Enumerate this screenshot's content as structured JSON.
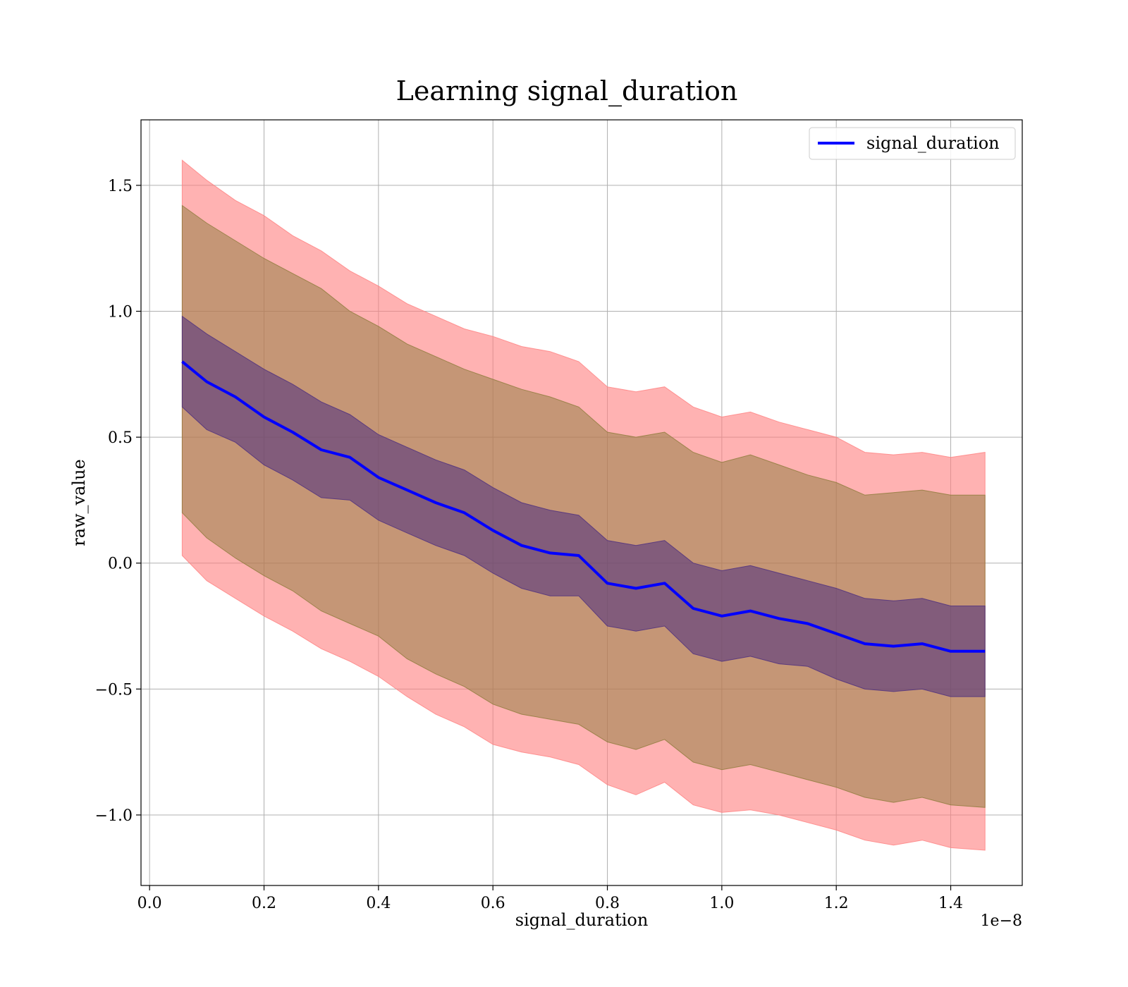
{
  "chart_data": {
    "type": "area",
    "title": "Learning signal_duration",
    "xlabel": "signal_duration",
    "ylabel": "raw_value",
    "x_offset_label": "1e−8",
    "xlim": [
      -0.015,
      1.525
    ],
    "ylim": [
      -1.28,
      1.76
    ],
    "x_ticks": [
      0.0,
      0.2,
      0.4,
      0.6,
      0.8,
      1.0,
      1.2,
      1.4
    ],
    "x_tick_labels": [
      "0.0",
      "0.2",
      "0.4",
      "0.6",
      "0.8",
      "1.0",
      "1.2",
      "1.4"
    ],
    "y_ticks": [
      -1.0,
      -0.5,
      0.0,
      0.5,
      1.0,
      1.5
    ],
    "y_tick_labels": [
      "−1.0",
      "−0.5",
      "0.0",
      "0.5",
      "1.0",
      "1.5"
    ],
    "grid": true,
    "legend_position": "top-right",
    "series": [
      {
        "name": "signal_duration",
        "color": "#0000ff",
        "x": [
          0.057,
          0.1,
          0.15,
          0.2,
          0.25,
          0.3,
          0.35,
          0.4,
          0.45,
          0.5,
          0.55,
          0.6,
          0.65,
          0.7,
          0.75,
          0.8,
          0.85,
          0.9,
          0.95,
          1.0,
          1.05,
          1.1,
          1.15,
          1.2,
          1.25,
          1.3,
          1.35,
          1.4,
          1.46
        ],
        "y": [
          0.8,
          0.72,
          0.66,
          0.58,
          0.52,
          0.45,
          0.42,
          0.34,
          0.29,
          0.24,
          0.2,
          0.13,
          0.07,
          0.04,
          0.03,
          -0.08,
          -0.1,
          -0.08,
          -0.18,
          -0.21,
          -0.19,
          -0.22,
          -0.24,
          -0.28,
          -0.32,
          -0.33,
          -0.32,
          -0.35,
          -0.35
        ]
      }
    ],
    "bands": [
      {
        "color": "#ff7f7f",
        "opacity": 0.6,
        "upper": [
          1.6,
          1.52,
          1.44,
          1.38,
          1.3,
          1.24,
          1.16,
          1.1,
          1.03,
          0.98,
          0.93,
          0.9,
          0.86,
          0.84,
          0.8,
          0.7,
          0.68,
          0.7,
          0.62,
          0.58,
          0.6,
          0.56,
          0.53,
          0.5,
          0.44,
          0.43,
          0.44,
          0.42,
          0.44
        ],
        "lower": [
          0.03,
          -0.07,
          -0.14,
          -0.21,
          -0.27,
          -0.34,
          -0.39,
          -0.45,
          -0.53,
          -0.6,
          -0.65,
          -0.72,
          -0.75,
          -0.77,
          -0.8,
          -0.88,
          -0.92,
          -0.87,
          -0.96,
          -0.99,
          -0.98,
          -1.0,
          -1.03,
          -1.06,
          -1.1,
          -1.12,
          -1.1,
          -1.13,
          -1.14
        ]
      },
      {
        "color": "#8c7a3a",
        "opacity": 0.5,
        "upper": [
          1.42,
          1.35,
          1.28,
          1.21,
          1.15,
          1.09,
          1.0,
          0.94,
          0.87,
          0.82,
          0.77,
          0.73,
          0.69,
          0.66,
          0.62,
          0.52,
          0.5,
          0.52,
          0.44,
          0.4,
          0.43,
          0.39,
          0.35,
          0.32,
          0.27,
          0.28,
          0.29,
          0.27,
          0.27
        ],
        "lower": [
          0.2,
          0.1,
          0.02,
          -0.05,
          -0.11,
          -0.19,
          -0.24,
          -0.29,
          -0.38,
          -0.44,
          -0.49,
          -0.56,
          -0.6,
          -0.62,
          -0.64,
          -0.71,
          -0.74,
          -0.7,
          -0.79,
          -0.82,
          -0.8,
          -0.83,
          -0.86,
          -0.89,
          -0.93,
          -0.95,
          -0.93,
          -0.96,
          -0.97
        ]
      },
      {
        "color": "#4b2d80",
        "opacity": 0.55,
        "upper": [
          0.98,
          0.91,
          0.84,
          0.77,
          0.71,
          0.64,
          0.59,
          0.51,
          0.46,
          0.41,
          0.37,
          0.3,
          0.24,
          0.21,
          0.19,
          0.09,
          0.07,
          0.09,
          -0.0,
          -0.03,
          -0.01,
          -0.04,
          -0.07,
          -0.1,
          -0.14,
          -0.15,
          -0.14,
          -0.17,
          -0.17
        ],
        "lower": [
          0.62,
          0.53,
          0.48,
          0.39,
          0.33,
          0.26,
          0.25,
          0.17,
          0.12,
          0.07,
          0.03,
          -0.04,
          -0.1,
          -0.13,
          -0.13,
          -0.25,
          -0.27,
          -0.25,
          -0.36,
          -0.39,
          -0.37,
          -0.4,
          -0.41,
          -0.46,
          -0.5,
          -0.51,
          -0.5,
          -0.53,
          -0.53
        ]
      }
    ]
  }
}
